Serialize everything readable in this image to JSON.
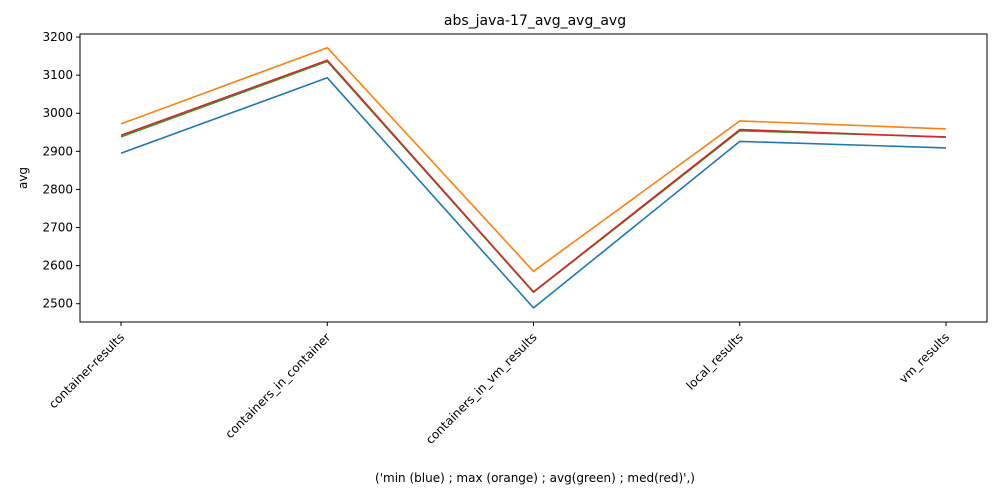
{
  "chart_data": {
    "type": "line",
    "title": "abs_java-17_avg_avg_avg",
    "xlabel": "('min (blue) ; max (orange) ; avg(green) ; med(red)',)",
    "ylabel": "avg",
    "categories": [
      "container-results",
      "containers_in_container",
      "containers_in_vm_results",
      "local_results",
      "vm_results"
    ],
    "ylim": [
      2452,
      3208
    ],
    "yticks": [
      2500,
      2600,
      2700,
      2800,
      2900,
      3000,
      3100,
      3200
    ],
    "grid": false,
    "series": [
      {
        "color": "#1f77b4",
        "values": [
          2895,
          3093,
          2489,
          2926,
          2909
        ]
      },
      {
        "color": "#ff7f0e",
        "values": [
          2972,
          3172,
          2585,
          2980,
          2959
        ]
      },
      {
        "color": "#2ca02c",
        "values": [
          2938,
          3136,
          2530,
          2954,
          2938
        ]
      },
      {
        "color": "#d62728",
        "values": [
          2942,
          3139,
          2531,
          2957,
          2937
        ]
      }
    ]
  }
}
